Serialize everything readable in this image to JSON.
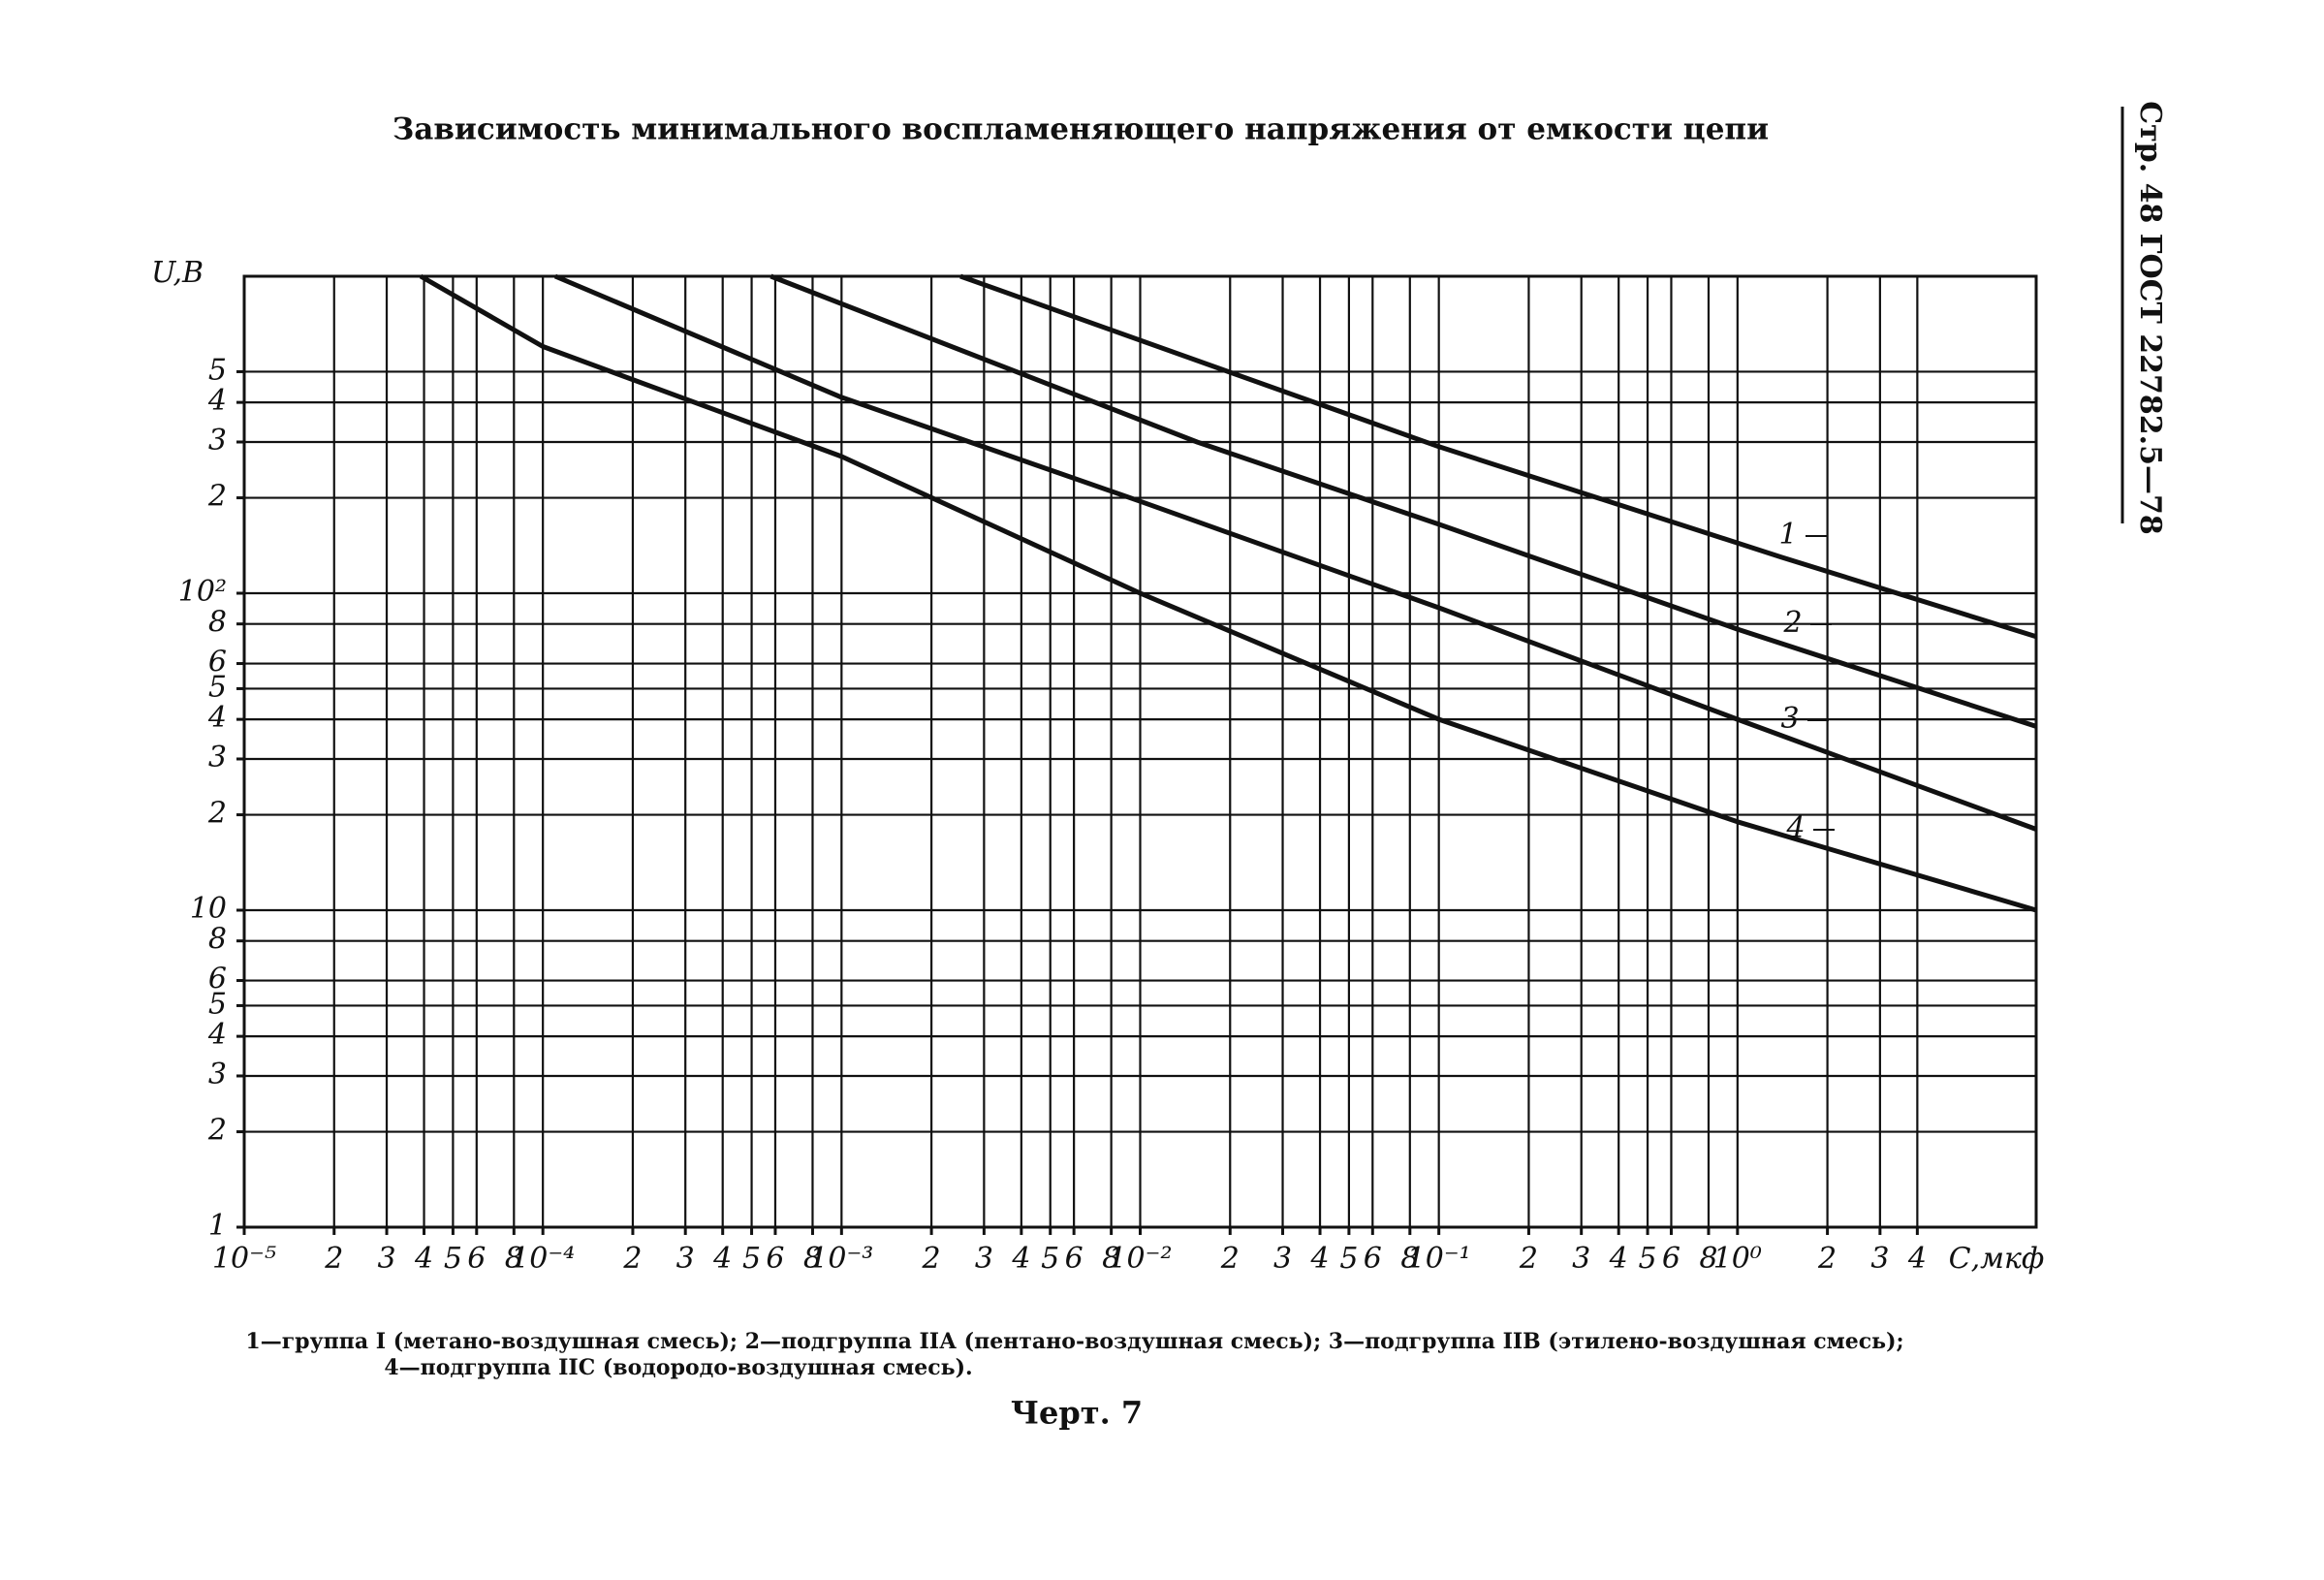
{
  "chart_data": {
    "type": "line",
    "title": "Зависимость минимального воспламеняющего напряжения от емкости цепи",
    "page_header": "Стр. 48 ГОСТ 22782.5—78",
    "x_label": "С,мкф",
    "y_label": "U,В",
    "xscale": "log",
    "yscale": "log",
    "grid": true,
    "xlim": [
      1e-05,
      10
    ],
    "ylim": [
      1,
      1000
    ],
    "xticks": [
      {
        "value": 1e-05,
        "label": "10⁻⁵"
      },
      {
        "value": 2e-05,
        "label": "2"
      },
      {
        "value": 3e-05,
        "label": "3"
      },
      {
        "value": 4e-05,
        "label": "4"
      },
      {
        "value": 5e-05,
        "label": "5"
      },
      {
        "value": 6e-05,
        "label": "6"
      },
      {
        "value": 8e-05,
        "label": "8"
      },
      {
        "value": 0.0001,
        "label": "10⁻⁴"
      },
      {
        "value": 0.0002,
        "label": "2"
      },
      {
        "value": 0.0003,
        "label": "3"
      },
      {
        "value": 0.0004,
        "label": "4"
      },
      {
        "value": 0.0005,
        "label": "5"
      },
      {
        "value": 0.0006,
        "label": "6"
      },
      {
        "value": 0.0008,
        "label": "8"
      },
      {
        "value": 0.001,
        "label": "10⁻³"
      },
      {
        "value": 0.002,
        "label": "2"
      },
      {
        "value": 0.003,
        "label": "3"
      },
      {
        "value": 0.004,
        "label": "4"
      },
      {
        "value": 0.005,
        "label": "5"
      },
      {
        "value": 0.006,
        "label": "6"
      },
      {
        "value": 0.008,
        "label": "8"
      },
      {
        "value": 0.01,
        "label": "10⁻²"
      },
      {
        "value": 0.02,
        "label": "2"
      },
      {
        "value": 0.03,
        "label": "3"
      },
      {
        "value": 0.04,
        "label": "4"
      },
      {
        "value": 0.05,
        "label": "5"
      },
      {
        "value": 0.06,
        "label": "6"
      },
      {
        "value": 0.08,
        "label": "8"
      },
      {
        "value": 0.1,
        "label": "10⁻¹"
      },
      {
        "value": 0.2,
        "label": "2"
      },
      {
        "value": 0.3,
        "label": "3"
      },
      {
        "value": 0.4,
        "label": "4"
      },
      {
        "value": 0.5,
        "label": "5"
      },
      {
        "value": 0.6,
        "label": "6"
      },
      {
        "value": 0.8,
        "label": "8"
      },
      {
        "value": 1,
        "label": "10⁰"
      },
      2,
      3,
      4
    ],
    "yticks": [
      1,
      2,
      3,
      4,
      5,
      6,
      8,
      10,
      {
        "value": 20,
        "label": "2"
      },
      {
        "value": 30,
        "label": "3"
      },
      {
        "value": 40,
        "label": "4"
      },
      {
        "value": 50,
        "label": "5"
      },
      {
        "value": 60,
        "label": "6"
      },
      {
        "value": 80,
        "label": "8"
      },
      {
        "value": 100,
        "label": "10²"
      },
      {
        "value": 200,
        "label": "2"
      },
      {
        "value": 300,
        "label": "3"
      },
      {
        "value": 400,
        "label": "4"
      },
      {
        "value": 500,
        "label": "5"
      }
    ],
    "series": [
      {
        "name": "1",
        "color": "#111111",
        "x": [
          0.0025,
          0.1,
          1.4,
          10
        ],
        "values": [
          1000,
          290,
          130,
          73
        ]
      },
      {
        "name": "2",
        "color": "#111111",
        "x": [
          0.00058,
          0.0155,
          0.1,
          1,
          10
        ],
        "values": [
          1000,
          300,
          165,
          77,
          38
        ]
      },
      {
        "name": "3",
        "color": "#111111",
        "x": [
          0.00011,
          0.001,
          0.01,
          0.1,
          1,
          10
        ],
        "values": [
          1000,
          415,
          195,
          90,
          40,
          18
        ]
      },
      {
        "name": "4",
        "color": "#111111",
        "x": [
          3.9e-05,
          0.0001,
          0.001,
          0.01,
          0.1,
          1,
          10
        ],
        "values": [
          1000,
          600,
          270,
          100,
          40,
          19,
          10
        ]
      }
    ],
    "caption": [
      "1—группа I (метано-воздушная смесь); 2—подгруппа IIА (пентано-воздушная смесь); 3—подгруппа IIВ (этилено-воздушная смесь);",
      "4—подгруппа IIС (водородо-воздушная смесь)."
    ],
    "figure_label": "Черт. 7"
  }
}
